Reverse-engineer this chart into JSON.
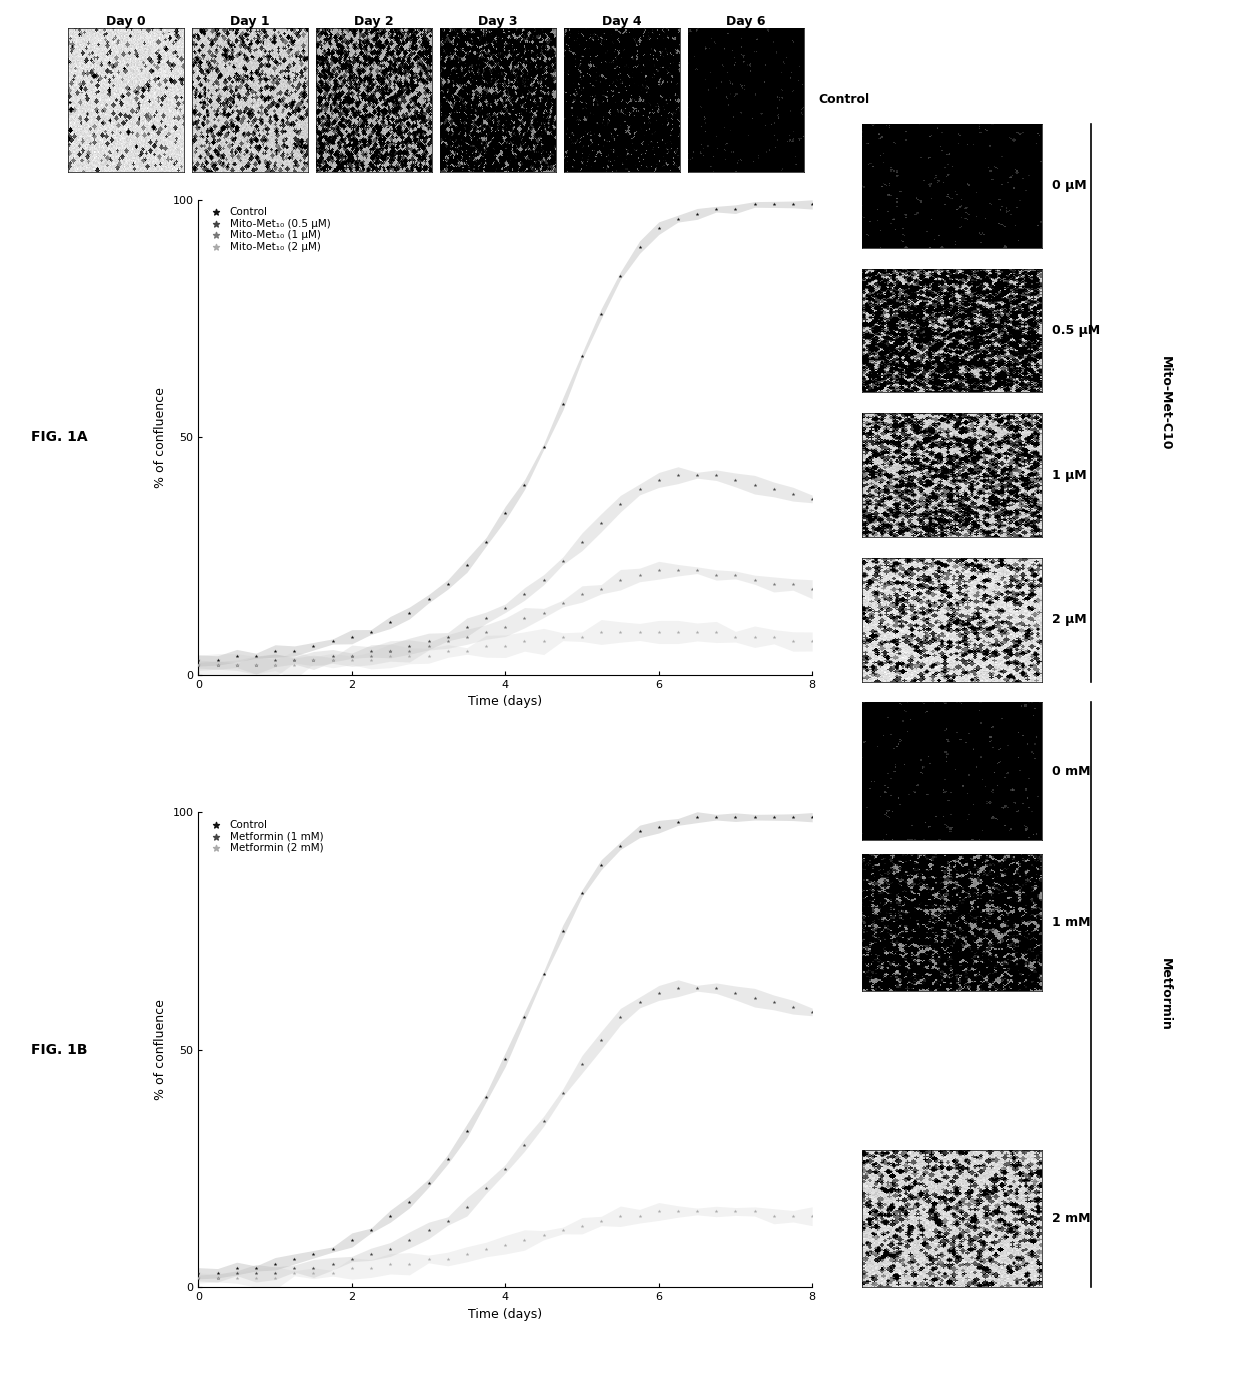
{
  "fig_width": 12.4,
  "fig_height": 13.77,
  "background_color": "#ffffff",
  "day_labels": [
    "Day 0",
    "Day 1",
    "Day 2",
    "Day 3",
    "Day 4",
    "Day 6"
  ],
  "plot1A": {
    "label": "FIG. 1A",
    "legend": [
      "Control",
      "Mito-Met₁₀ (0.5 μM)",
      "Mito-Met₁₀ (1 μM)",
      "Mito-Met₁₀ (2 μM)"
    ],
    "xlabel": "Time (days)",
    "ylabel": "% of confluence",
    "ylim": [
      0,
      100
    ],
    "xlim": [
      0,
      8
    ],
    "yticks": [
      0,
      50,
      100
    ],
    "xticks": [
      0,
      2,
      4,
      6,
      8
    ],
    "time": [
      0.0,
      0.25,
      0.5,
      0.75,
      1.0,
      1.25,
      1.5,
      1.75,
      2.0,
      2.25,
      2.5,
      2.75,
      3.0,
      3.25,
      3.5,
      3.75,
      4.0,
      4.25,
      4.5,
      4.75,
      5.0,
      5.25,
      5.5,
      5.75,
      6.0,
      6.25,
      6.5,
      6.75,
      7.0,
      7.25,
      7.5,
      7.75,
      8.0
    ],
    "control": [
      3,
      3,
      4,
      4,
      5,
      5,
      6,
      7,
      8,
      9,
      11,
      13,
      16,
      19,
      23,
      28,
      34,
      40,
      48,
      57,
      67,
      76,
      84,
      90,
      94,
      96,
      97,
      98,
      98,
      99,
      99,
      99,
      99
    ],
    "series_05": [
      2,
      2,
      2,
      2,
      3,
      3,
      3,
      4,
      4,
      5,
      5,
      6,
      7,
      8,
      10,
      12,
      14,
      17,
      20,
      24,
      28,
      32,
      36,
      39,
      41,
      42,
      42,
      42,
      41,
      40,
      39,
      38,
      37
    ],
    "series_1": [
      2,
      2,
      2,
      2,
      2,
      3,
      3,
      3,
      4,
      4,
      5,
      5,
      6,
      7,
      8,
      9,
      10,
      12,
      13,
      15,
      17,
      18,
      20,
      21,
      22,
      22,
      22,
      21,
      21,
      20,
      19,
      19,
      18
    ],
    "series_2": [
      2,
      2,
      2,
      2,
      2,
      2,
      3,
      3,
      3,
      3,
      4,
      4,
      4,
      5,
      5,
      6,
      6,
      7,
      7,
      8,
      8,
      9,
      9,
      9,
      9,
      9,
      9,
      9,
      8,
      8,
      8,
      7,
      7
    ],
    "colors": [
      "#111111",
      "#444444",
      "#777777",
      "#aaaaaa"
    ],
    "err_colors": [
      "#888888",
      "#aaaaaa",
      "#bbbbbb",
      "#cccccc"
    ]
  },
  "plot1B": {
    "label": "FIG. 1B",
    "legend": [
      "Control",
      "Metformin (1 mM)",
      "Metformin (2 mM)"
    ],
    "xlabel": "Time (days)",
    "ylabel": "% of confluence",
    "ylim": [
      0,
      100
    ],
    "xlim": [
      0,
      8
    ],
    "yticks": [
      0,
      50,
      100
    ],
    "xticks": [
      0,
      2,
      4,
      6,
      8
    ],
    "time": [
      0.0,
      0.25,
      0.5,
      0.75,
      1.0,
      1.25,
      1.5,
      1.75,
      2.0,
      2.25,
      2.5,
      2.75,
      3.0,
      3.25,
      3.5,
      3.75,
      4.0,
      4.25,
      4.5,
      4.75,
      5.0,
      5.25,
      5.5,
      5.75,
      6.0,
      6.25,
      6.5,
      6.75,
      7.0,
      7.25,
      7.5,
      7.75,
      8.0
    ],
    "control": [
      3,
      3,
      4,
      4,
      5,
      6,
      7,
      8,
      10,
      12,
      15,
      18,
      22,
      27,
      33,
      40,
      48,
      57,
      66,
      75,
      83,
      89,
      93,
      96,
      97,
      98,
      99,
      99,
      99,
      99,
      99,
      99,
      99
    ],
    "series_1mM": [
      2,
      2,
      3,
      3,
      3,
      4,
      4,
      5,
      6,
      7,
      8,
      10,
      12,
      14,
      17,
      21,
      25,
      30,
      35,
      41,
      47,
      52,
      57,
      60,
      62,
      63,
      63,
      63,
      62,
      61,
      60,
      59,
      58
    ],
    "series_2mM": [
      2,
      2,
      2,
      2,
      2,
      3,
      3,
      3,
      4,
      4,
      5,
      5,
      6,
      6,
      7,
      8,
      9,
      10,
      11,
      12,
      13,
      14,
      15,
      15,
      16,
      16,
      16,
      16,
      16,
      16,
      15,
      15,
      15
    ],
    "colors": [
      "#111111",
      "#444444",
      "#aaaaaa"
    ],
    "err_colors": [
      "#888888",
      "#aaaaaa",
      "#cccccc"
    ]
  },
  "top_grays": [
    0.88,
    0.82,
    0.7,
    0.55,
    0.42,
    0.18
  ],
  "top_dot_den": [
    0.04,
    0.1,
    0.22,
    0.4,
    0.55,
    0.78
  ],
  "mito_labels": [
    "0 μM",
    "0.5 μM",
    "1 μM",
    "2 μM"
  ],
  "mito_grays": [
    0.2,
    0.78,
    0.82,
    0.88
  ],
  "mito_dot_den": [
    0.75,
    0.35,
    0.22,
    0.12
  ],
  "met_labels": [
    "0 mM",
    "1 mM",
    "2 mM"
  ],
  "met_grays": [
    0.2,
    0.55,
    0.85
  ],
  "met_dot_den": [
    0.75,
    0.38,
    0.12
  ]
}
